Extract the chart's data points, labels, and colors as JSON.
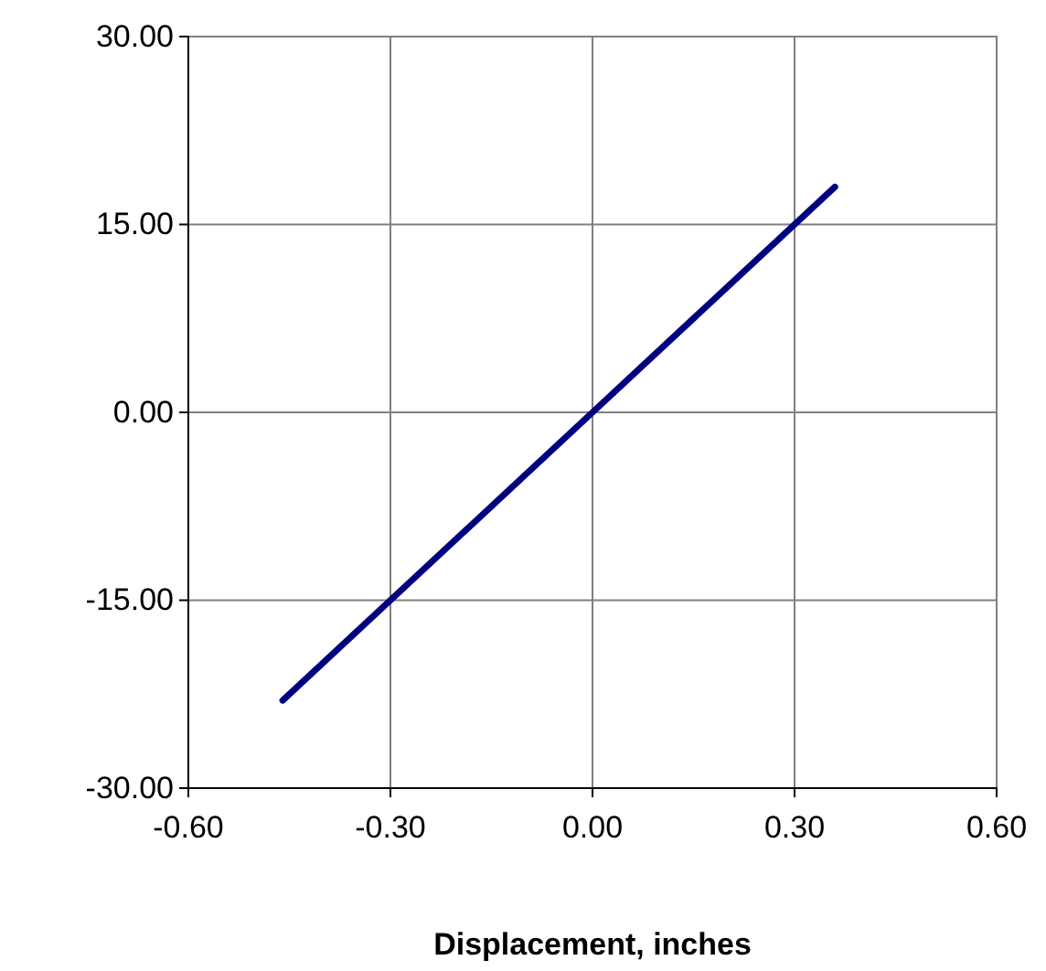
{
  "chart_data": {
    "type": "line",
    "xlabel": "Displacement, inches",
    "x": [
      -0.46,
      0,
      0.36
    ],
    "series": [
      {
        "color": "#000080",
        "values": [
          -23,
          0,
          18
        ]
      }
    ],
    "xlim": [
      -0.6,
      0.6
    ],
    "xticks": [
      {
        "value": -0.6,
        "label": "-0.60"
      },
      {
        "value": -0.3,
        "label": "-0.30"
      },
      {
        "value": 0,
        "label": "0.00"
      },
      {
        "value": 0.3,
        "label": "0.30"
      },
      {
        "value": 0.6,
        "label": "0.60"
      }
    ],
    "ylim": [
      -30,
      30
    ],
    "yticks": [
      {
        "value": -30,
        "label": "-30.00"
      },
      {
        "value": -15,
        "label": "-15.00"
      },
      {
        "value": 0,
        "label": "0.00"
      },
      {
        "value": 15,
        "label": "15.00"
      },
      {
        "value": 30,
        "label": "30.00"
      }
    ],
    "grid": true,
    "marker": "none",
    "line_style": "solid"
  }
}
